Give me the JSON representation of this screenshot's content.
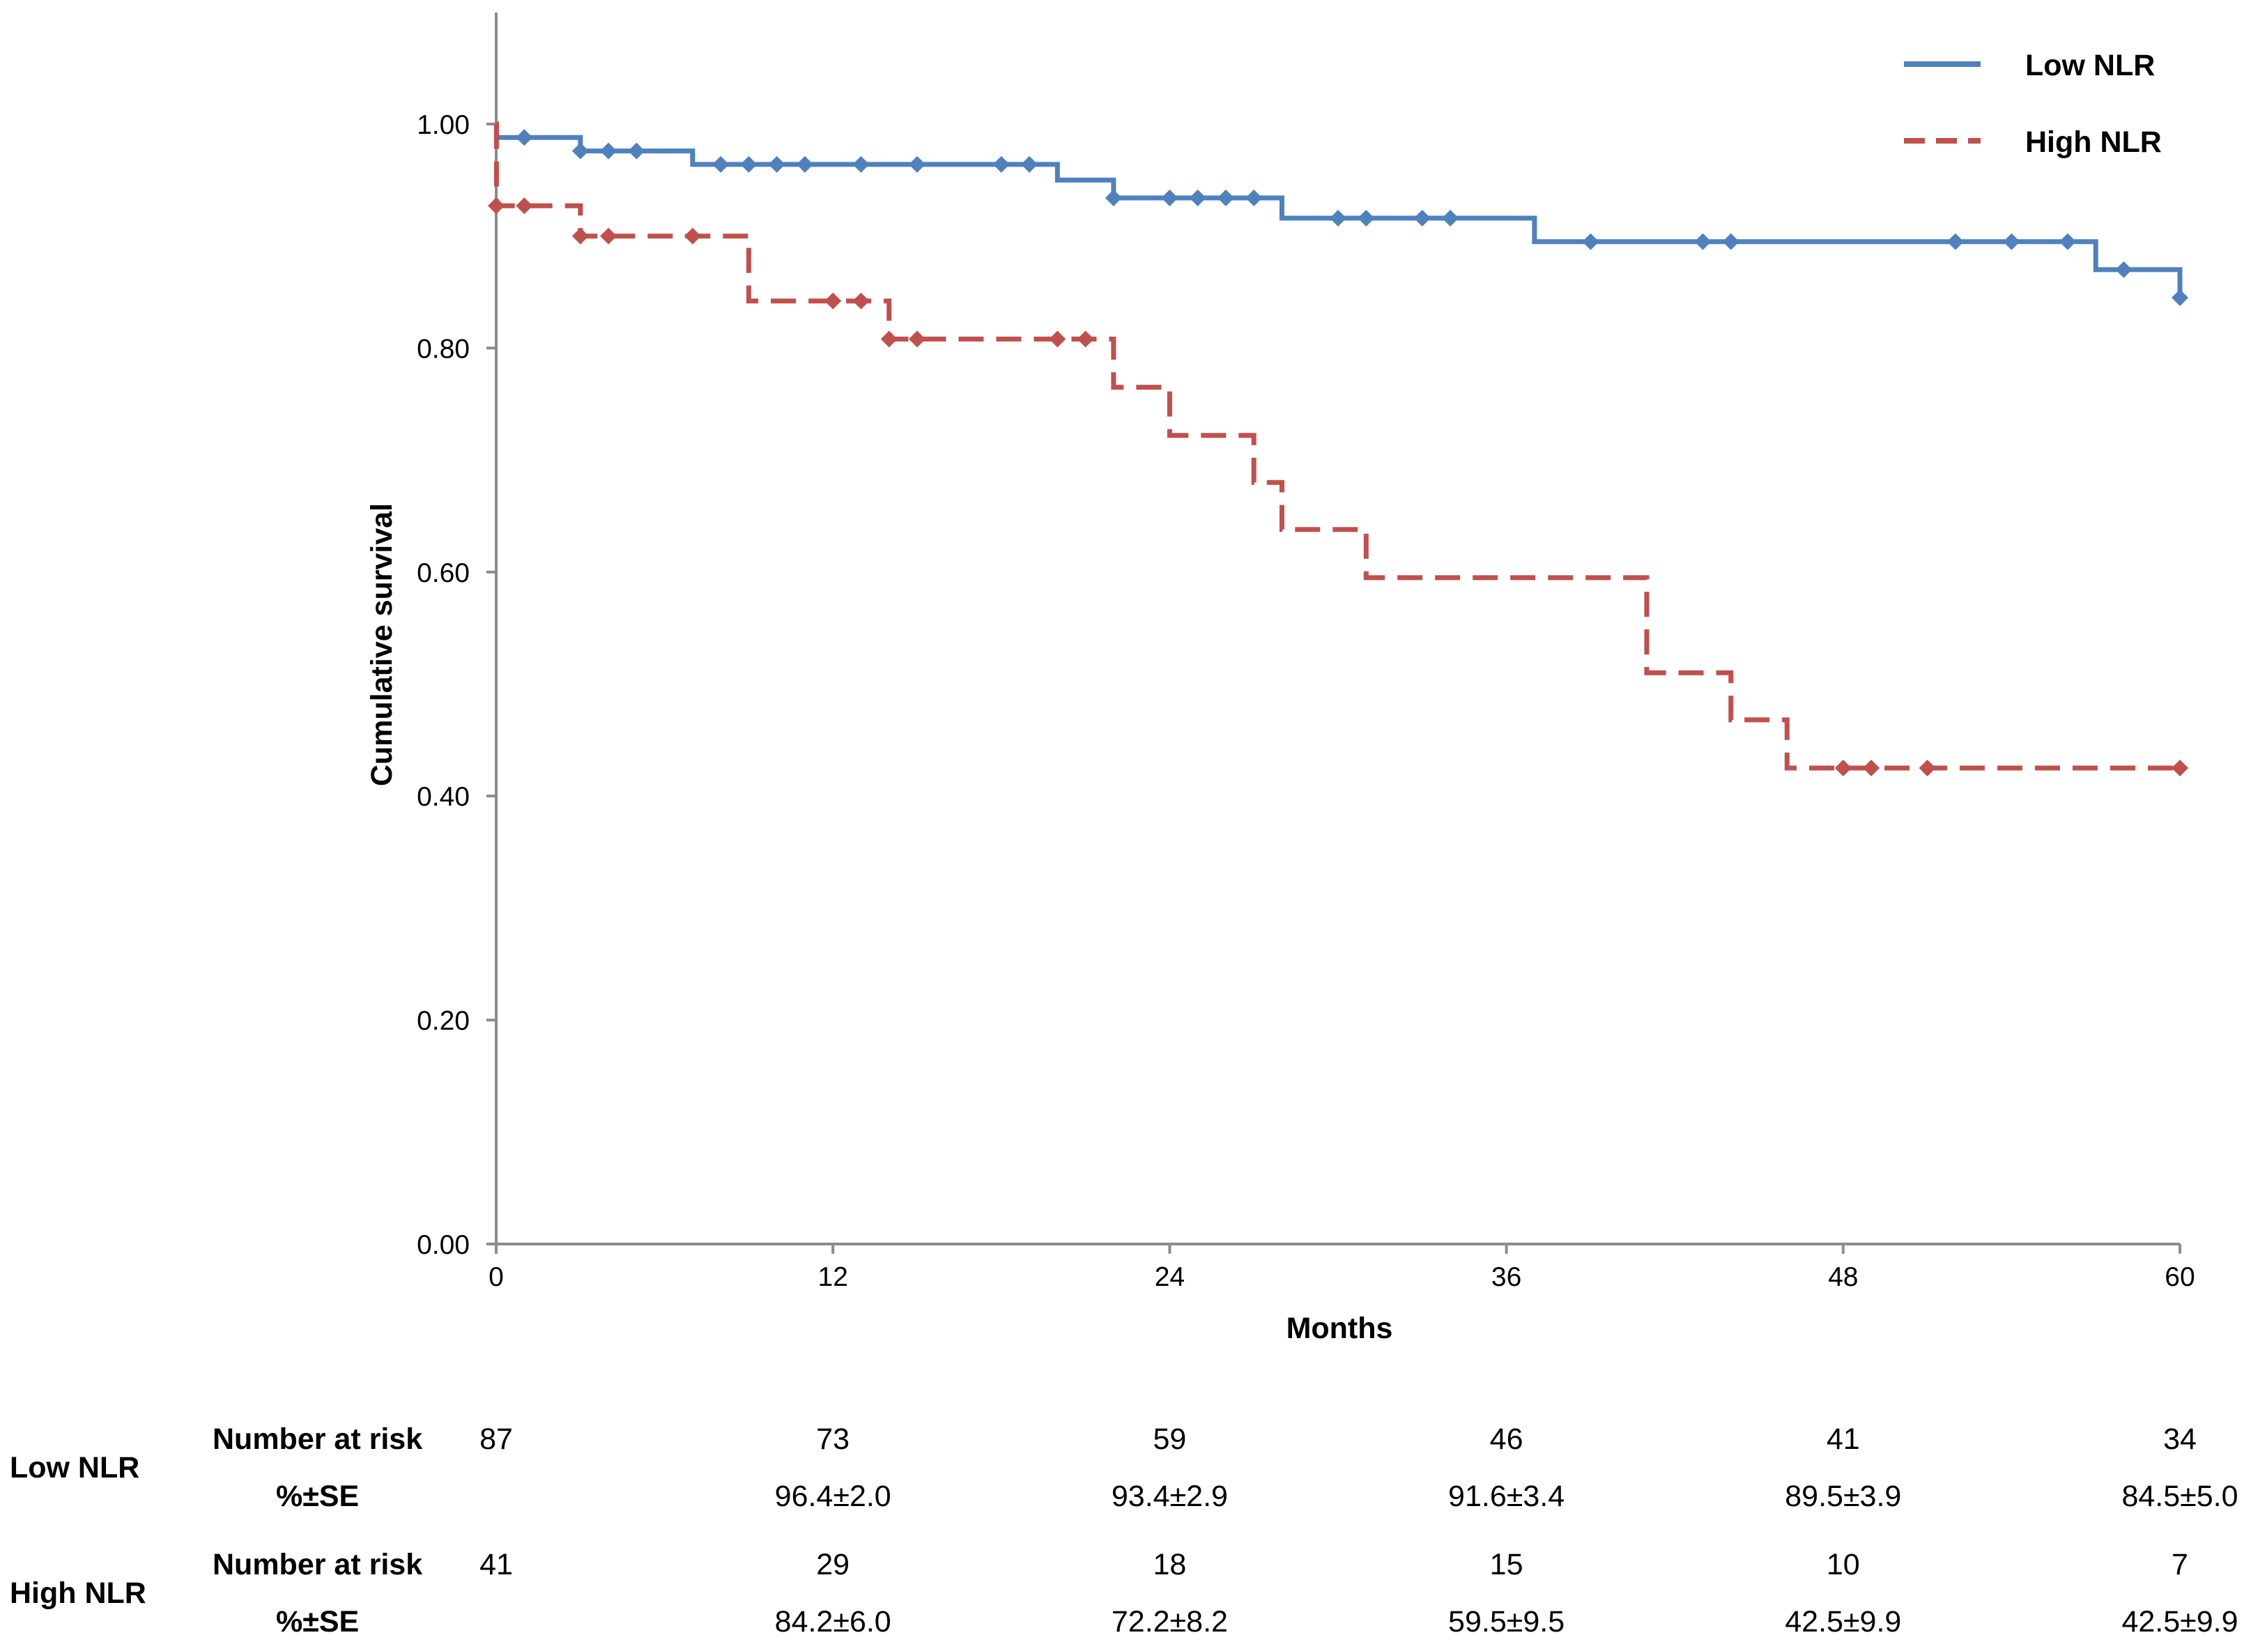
{
  "chart_data": {
    "type": "line",
    "subtype": "kaplan-meier",
    "title": "",
    "xlabel": "Months",
    "ylabel": "Cumulative survival",
    "xlim": [
      0,
      60
    ],
    "ylim": [
      0,
      1.1
    ],
    "x_ticks": [
      0,
      12,
      24,
      36,
      48,
      60
    ],
    "x_tick_labels": [
      "0",
      "12",
      "24",
      "36",
      "48",
      "60"
    ],
    "y_ticks": [
      0,
      0.2,
      0.4,
      0.6,
      0.8,
      1.0
    ],
    "y_tick_labels": [
      "0.00",
      "0.20",
      "0.40",
      "0.60",
      "0.80",
      "1.00"
    ],
    "grid": false,
    "legend_position": "top-right",
    "series": [
      {
        "name": "Low NLR",
        "color": "#4f81bd",
        "dash": "solid",
        "steps": [
          [
            0,
            1.0
          ],
          [
            0.01,
            0.988
          ],
          [
            3,
            0.976
          ],
          [
            7,
            0.964
          ],
          [
            20,
            0.95
          ],
          [
            22,
            0.934
          ],
          [
            28,
            0.916
          ],
          [
            37,
            0.895
          ],
          [
            57,
            0.87
          ],
          [
            60,
            0.845
          ]
        ],
        "censored": [
          [
            1,
            0.988
          ],
          [
            3,
            0.976
          ],
          [
            4,
            0.976
          ],
          [
            5,
            0.976
          ],
          [
            8,
            0.964
          ],
          [
            9,
            0.964
          ],
          [
            10,
            0.964
          ],
          [
            11,
            0.964
          ],
          [
            13,
            0.964
          ],
          [
            15,
            0.964
          ],
          [
            18,
            0.964
          ],
          [
            19,
            0.964
          ],
          [
            22,
            0.934
          ],
          [
            24,
            0.934
          ],
          [
            25,
            0.934
          ],
          [
            26,
            0.934
          ],
          [
            27,
            0.934
          ],
          [
            30,
            0.916
          ],
          [
            31,
            0.916
          ],
          [
            33,
            0.916
          ],
          [
            34,
            0.916
          ],
          [
            39,
            0.895
          ],
          [
            43,
            0.895
          ],
          [
            44,
            0.895
          ],
          [
            52,
            0.895
          ],
          [
            54,
            0.895
          ],
          [
            56,
            0.895
          ],
          [
            58,
            0.87
          ],
          [
            60,
            0.845
          ]
        ]
      },
      {
        "name": "High NLR",
        "color": "#c0504d",
        "dash": "dashed",
        "steps": [
          [
            0,
            1.0
          ],
          [
            0.01,
            0.927
          ],
          [
            3,
            0.9
          ],
          [
            9,
            0.842
          ],
          [
            14,
            0.808
          ],
          [
            22,
            0.765
          ],
          [
            24,
            0.722
          ],
          [
            27,
            0.68
          ],
          [
            28,
            0.638
          ],
          [
            31,
            0.595
          ],
          [
            41,
            0.51
          ],
          [
            44,
            0.468
          ],
          [
            46,
            0.425
          ],
          [
            60,
            0.425
          ]
        ],
        "censored": [
          [
            0,
            0.927
          ],
          [
            1,
            0.927
          ],
          [
            3,
            0.9
          ],
          [
            4,
            0.9
          ],
          [
            7,
            0.9
          ],
          [
            12,
            0.842
          ],
          [
            13,
            0.842
          ],
          [
            14,
            0.808
          ],
          [
            15,
            0.808
          ],
          [
            20,
            0.808
          ],
          [
            21,
            0.808
          ],
          [
            48,
            0.425
          ],
          [
            49,
            0.425
          ],
          [
            51,
            0.425
          ],
          [
            60,
            0.425
          ]
        ]
      }
    ]
  },
  "risk_table": {
    "timepoints": [
      "0",
      "12",
      "24",
      "36",
      "48",
      "60"
    ],
    "groups": [
      {
        "name": "Low NLR",
        "number_label": "Number at risk",
        "numbers": [
          "87",
          "73",
          "59",
          "46",
          "41",
          "34"
        ],
        "pct_label": "%±SE",
        "pcts": [
          "",
          "96.4±2.0",
          "93.4±2.9",
          "91.6±3.4",
          "89.5±3.9",
          "84.5±5.0"
        ]
      },
      {
        "name": "High NLR",
        "number_label": "Number at risk",
        "numbers": [
          "41",
          "29",
          "18",
          "15",
          "10",
          "7"
        ],
        "pct_label": "%±SE",
        "pcts": [
          "",
          "84.2±6.0",
          "72.2±8.2",
          "59.5±9.5",
          "42.5±9.9",
          "42.5±9.9"
        ]
      }
    ]
  }
}
